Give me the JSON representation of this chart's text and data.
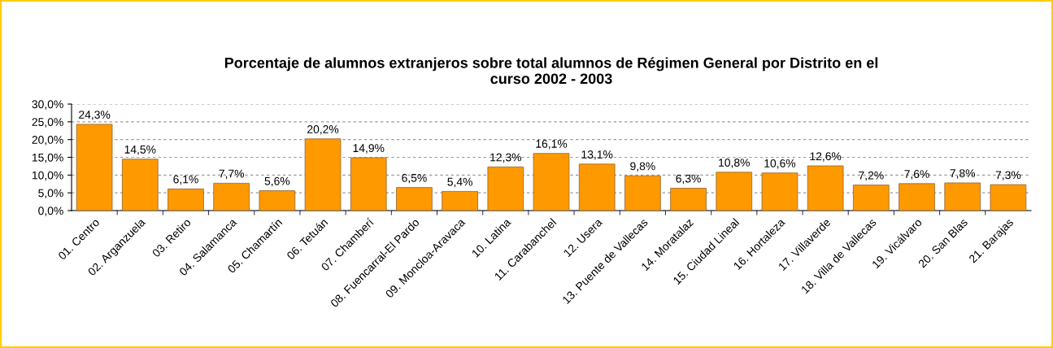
{
  "chart_data": {
    "type": "bar",
    "title": "Porcentaje de alumnos extranjeros sobre total alumnos de Régimen General por Distrito en el\ncurso 2002 - 2003",
    "categories": [
      "01. Centro",
      "02. Arganzuela",
      "03. Retiro",
      "04. Salamanca",
      "05. Chamartín",
      "06. Tetuán",
      "07. Chamberí",
      "08. Fuencarral-El Pardo",
      "09. Moncloa-Aravaca",
      "10. Latina",
      "11. Carabanchel",
      "12. Usera",
      "13. Puente de Vallecas",
      "14. Moratalaz",
      "15. Ciudad Lineal",
      "16. Hortaleza",
      "17. Villaverde",
      "18. Villa de Vallecas",
      "19. Vicálvaro",
      "20. San Blas",
      "21. Barajas"
    ],
    "values": [
      24.3,
      14.5,
      6.1,
      7.7,
      5.6,
      20.2,
      14.9,
      6.5,
      5.4,
      12.3,
      16.1,
      13.1,
      9.8,
      6.3,
      10.8,
      10.6,
      12.6,
      7.2,
      7.6,
      7.8,
      7.3
    ],
    "value_labels": [
      "24,3%",
      "14,5%",
      "6,1%",
      "7,7%",
      "5,6%",
      "20,2%",
      "14,9%",
      "6,5%",
      "5,4%",
      "12,3%",
      "16,1%",
      "13,1%",
      "9,8%",
      "6,3%",
      "10,8%",
      "10,6%",
      "12,6%",
      "7,2%",
      "7,6%",
      "7,8%",
      "7,3%"
    ],
    "color": "#ff9900",
    "ylim": [
      0,
      30
    ],
    "yticks": [
      {
        "value": 0,
        "label": "0,0%"
      },
      {
        "value": 5,
        "label": "5,0%"
      },
      {
        "value": 10,
        "label": "10,0%"
      },
      {
        "value": 15,
        "label": "15,0%"
      },
      {
        "value": 20,
        "label": "20,0%"
      },
      {
        "value": 25,
        "label": "25,0%"
      },
      {
        "value": 30,
        "label": "30,0%"
      }
    ],
    "grid": "y"
  }
}
